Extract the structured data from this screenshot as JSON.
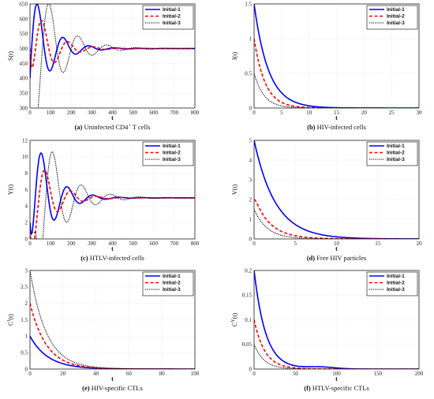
{
  "legend": [
    "Initial-1",
    "Initial-2",
    "Initial-3"
  ],
  "series_styles": [
    {
      "color": "#0000ff",
      "dash": "",
      "width": 1.6
    },
    {
      "color": "#ff0000",
      "dash": "4,2.5",
      "width": 1.6
    },
    {
      "color": "#000000",
      "dash": "1.2,1.2",
      "width": 1.1
    }
  ],
  "chart_data": [
    {
      "type": "line",
      "caption_bold": "(a)",
      "caption_text": " Uninfected CD4",
      "caption_sup": "+",
      "caption_tail": " T cells",
      "xlabel": "t",
      "ylabel": "S(t)",
      "xlim": [
        0,
        800
      ],
      "ylim": [
        300,
        650
      ],
      "xticks": [
        "0",
        "100",
        "200",
        "300",
        "400",
        "500",
        "600",
        "700",
        "800"
      ],
      "yticks": [
        "300",
        "350",
        "400",
        "450",
        "500",
        "550",
        "600",
        "650"
      ],
      "legend_position": "top-right",
      "grid": true,
      "model": {
        "kind": "osc",
        "eq": 500,
        "steps": 260
      },
      "series": [
        {
          "y0": 400,
          "A": 147,
          "tpeak": 38,
          "period": 125,
          "tau": 90,
          "dead": 0
        },
        {
          "y0": 500,
          "A": 92,
          "tpeak": 60,
          "period": 125,
          "tau": 90,
          "dead": 0
        },
        {
          "y0": 300,
          "A": 149,
          "tpeak": 95,
          "period": 140,
          "tau": 110,
          "dead": 0
        }
      ]
    },
    {
      "type": "line",
      "caption_bold": "(b)",
      "caption_text": " HIV-infected cells",
      "caption_sup": "",
      "caption_tail": "",
      "xlabel": "t",
      "ylabel": "I(t)",
      "xlim": [
        0,
        30
      ],
      "ylim": [
        0,
        1.5
      ],
      "xticks": [
        "0",
        "5",
        "10",
        "15",
        "20",
        "25",
        "30"
      ],
      "yticks": [
        "0",
        "0.5",
        "1",
        "1.5"
      ],
      "legend_position": "top-right",
      "grid": true,
      "model": {
        "kind": "decay",
        "steps": 200
      },
      "series": [
        {
          "y0": 1.5,
          "tau": 2.6
        },
        {
          "y0": 1.0,
          "tau": 2.0
        },
        {
          "y0": 0.5,
          "tau": 1.8
        }
      ]
    },
    {
      "type": "line",
      "caption_bold": "(c)",
      "caption_text": " HTLV-infected cells",
      "caption_sup": "",
      "caption_tail": "",
      "xlabel": "t",
      "ylabel": "Y(t)",
      "xlim": [
        0,
        800
      ],
      "ylim": [
        0,
        12
      ],
      "xticks": [
        "0",
        "100",
        "200",
        "300",
        "400",
        "500",
        "600",
        "700",
        "800"
      ],
      "yticks": [
        "0",
        "2",
        "4",
        "6",
        "8",
        "10",
        "12"
      ],
      "legend_position": "top-right",
      "grid": true,
      "model": {
        "kind": "osc",
        "eq": 5,
        "steps": 260
      },
      "series": [
        {
          "y0": 2.0,
          "A": 5.3,
          "tpeak": 58,
          "period": 125,
          "tau": 90,
          "dead": 0
        },
        {
          "y0": 1.0,
          "A": 3.3,
          "tpeak": 75,
          "period": 125,
          "tau": 90,
          "dead": 0
        },
        {
          "y0": 0.8,
          "A": 5.5,
          "tpeak": 112,
          "period": 140,
          "tau": 110,
          "dead": 30
        }
      ]
    },
    {
      "type": "line",
      "caption_bold": "(d)",
      "caption_text": " Free HIV particles",
      "caption_sup": "",
      "caption_tail": "",
      "xlabel": "t",
      "ylabel": "V(t)",
      "xlim": [
        0,
        20
      ],
      "ylim": [
        0,
        5
      ],
      "xticks": [
        "0",
        "5",
        "10",
        "15",
        "20"
      ],
      "yticks": [
        "0",
        "1",
        "2",
        "3",
        "4",
        "5"
      ],
      "legend_position": "top-right",
      "grid": true,
      "model": {
        "kind": "decay",
        "steps": 200
      },
      "series": [
        {
          "y0": 5.0,
          "tau": 2.6
        },
        {
          "y0": 2.0,
          "tau": 2.0,
          "bump": 0.15
        },
        {
          "y0": 1.5,
          "tau": 1.6
        }
      ]
    },
    {
      "type": "line",
      "caption_bold": "(e)",
      "caption_text": " HIV-specific CTLs",
      "caption_sup": "",
      "caption_tail": "",
      "xlabel": "t",
      "ylabel": "C",
      "ylabel_sup": "I",
      "ylabel_tail": "(t)",
      "xlim": [
        0,
        100
      ],
      "ylim": [
        0,
        3
      ],
      "xticks": [
        "0",
        "20",
        "40",
        "60",
        "80",
        "100"
      ],
      "yticks": [
        "0",
        "0.5",
        "1",
        "1.5",
        "2",
        "2.5",
        "3"
      ],
      "legend_position": "top-right",
      "grid": true,
      "model": {
        "kind": "decay",
        "steps": 200
      },
      "series": [
        {
          "y0": 1.0,
          "tau": 11
        },
        {
          "y0": 2.0,
          "tau": 10
        },
        {
          "y0": 3.0,
          "tau": 10
        }
      ]
    },
    {
      "type": "line",
      "caption_bold": "(f)",
      "caption_text": " HTLV-specific CTLs",
      "caption_sup": "",
      "caption_tail": "",
      "xlabel": "t",
      "ylabel": "C",
      "ylabel_sup": "Y",
      "ylabel_tail": "(t)",
      "xlim": [
        0,
        200
      ],
      "ylim": [
        0,
        0.2
      ],
      "xticks": [
        "0",
        "50",
        "100",
        "150",
        "200"
      ],
      "yticks": [
        "0",
        "0.05",
        "0.1",
        "0.15",
        "0.2"
      ],
      "legend_position": "top-right",
      "grid": true,
      "model": {
        "kind": "decay",
        "steps": 200
      },
      "series": [
        {
          "y0": 0.2,
          "tau": 14,
          "hump": 0.004
        },
        {
          "y0": 0.1,
          "tau": 13
        },
        {
          "y0": 0.05,
          "tau": 12
        }
      ]
    }
  ]
}
